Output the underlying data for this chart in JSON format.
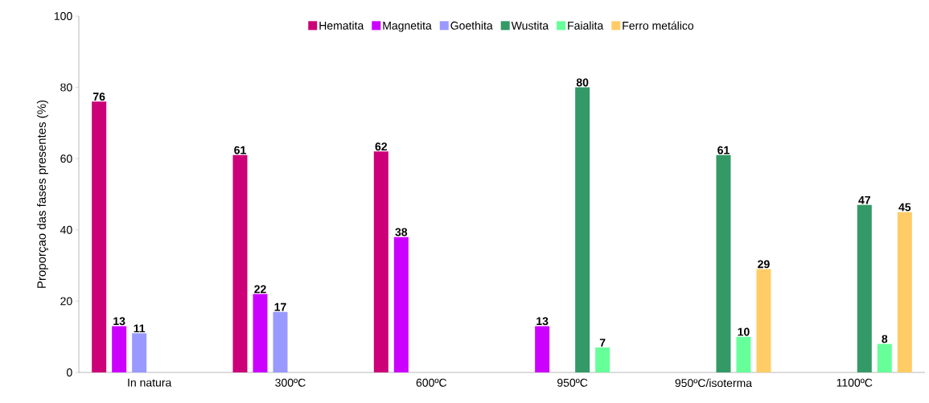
{
  "chart_data": {
    "type": "bar",
    "ylabel": "Proporçao das fases presentes (%)",
    "categories": [
      "In natura",
      "300ºC",
      "600ºC",
      "950ºC",
      "950ºC/isoterma",
      "1100ºC"
    ],
    "series": [
      {
        "name": "Hematita",
        "color": "#cc0077",
        "values": [
          76,
          61,
          62,
          null,
          null,
          null
        ]
      },
      {
        "name": "Magnetita",
        "color": "#cc00ff",
        "values": [
          13,
          22,
          38,
          13,
          null,
          null
        ]
      },
      {
        "name": "Goethita",
        "color": "#9999ff",
        "values": [
          11,
          17,
          null,
          null,
          null,
          null
        ]
      },
      {
        "name": "Wustita",
        "color": "#339966",
        "values": [
          null,
          null,
          null,
          80,
          61,
          47
        ]
      },
      {
        "name": "Faialita",
        "color": "#66ff99",
        "values": [
          null,
          null,
          null,
          7,
          10,
          8
        ]
      },
      {
        "name": "Ferro metálico",
        "color": "#ffcc66",
        "values": [
          null,
          null,
          null,
          null,
          29,
          45
        ]
      }
    ],
    "ylim": [
      0,
      100
    ],
    "yticks": [
      0,
      20,
      40,
      60,
      80,
      100
    ],
    "grid": false,
    "legend": "top",
    "data_labels": true
  }
}
